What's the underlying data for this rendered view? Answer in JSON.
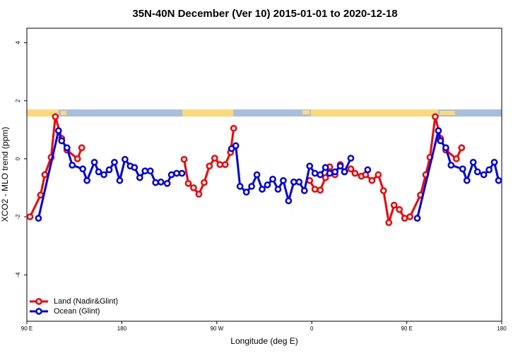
{
  "chart_data": {
    "type": "line",
    "title": "35N-40N December (Ver 10)   2015-01-01 to 2020-12-18",
    "x_label": "Longitude (deg E)",
    "y_label": "XCO2 - MLO trend (ppm)",
    "xlim": [
      90,
      540
    ],
    "ylim": [
      -5.6,
      4.5
    ],
    "xticks": [
      {
        "value": 90,
        "label": "90 E"
      },
      180,
      {
        "value": 270,
        "label": "90 W"
      },
      {
        "value": 360,
        "label": "0"
      },
      {
        "value": 450,
        "label": "90 E"
      },
      {
        "value": 540,
        "label": "180"
      }
    ],
    "yticks": [
      -4,
      -2,
      0,
      2,
      4
    ],
    "legend": "bottom-left",
    "series": [
      {
        "name": "Land (Nadir&Glint)",
        "color": "#ff0000",
        "x": [
          93,
          103,
          107,
          113,
          117,
          123,
          128,
          138,
          142,
          null,
          239,
          243,
          248,
          253,
          258,
          263,
          268,
          273,
          278,
          283,
          286,
          null,
          358,
          363,
          368,
          373,
          377,
          382,
          387,
          391,
          397,
          401,
          407,
          411,
          417,
          423,
          428,
          433,
          438,
          443,
          448,
          453,
          463,
          468,
          472,
          477,
          482,
          487,
          497,
          502
        ],
        "values": [
          -2.0,
          -1.25,
          -0.55,
          0.05,
          1.45,
          0.7,
          0.3,
          0.0,
          0.38,
          null,
          -0.02,
          -0.85,
          -1.0,
          -1.22,
          -0.82,
          -0.25,
          0.02,
          -0.2,
          -0.2,
          0.22,
          1.05,
          null,
          -0.75,
          -1.05,
          -1.08,
          -0.65,
          -0.28,
          -0.55,
          -0.2,
          -0.45,
          -0.35,
          -0.5,
          -0.6,
          -0.55,
          -0.75,
          -0.55,
          -1.1,
          -2.2,
          -1.6,
          -1.75,
          -2.05,
          -2.0,
          -1.25,
          -0.55,
          0.05,
          1.45,
          0.7,
          0.3,
          0.0,
          0.38
        ]
      },
      {
        "name": "Ocean (Glint)",
        "color": "#0000ee",
        "x": [
          101,
          120,
          123,
          128,
          133,
          143,
          147,
          154,
          158,
          163,
          168,
          173,
          178,
          183,
          188,
          192,
          197,
          202,
          207,
          212,
          217,
          223,
          227,
          232,
          237,
          null,
          284,
          288,
          292,
          298,
          303,
          308,
          313,
          318,
          323,
          328,
          333,
          338,
          343,
          348,
          353,
          358,
          363,
          368,
          373,
          377,
          382,
          387,
          391,
          397,
          null,
          413,
          null,
          460,
          480,
          482,
          487,
          492,
          503,
          507,
          513,
          517,
          523,
          528,
          533,
          537
        ],
        "values": [
          -2.05,
          0.97,
          0.62,
          0.38,
          -0.22,
          -0.35,
          -0.75,
          -0.12,
          -0.45,
          -0.55,
          -0.38,
          -0.12,
          -0.75,
          -0.02,
          -0.25,
          -0.3,
          -0.65,
          -0.42,
          -0.42,
          -0.82,
          -0.8,
          -0.85,
          -0.55,
          -0.5,
          -0.5,
          null,
          0.35,
          0.45,
          -0.95,
          -1.15,
          -0.95,
          -0.55,
          -1.05,
          -0.9,
          -0.7,
          -1.05,
          -0.75,
          -1.45,
          -0.8,
          -0.8,
          -1.1,
          -0.25,
          -0.5,
          -0.55,
          -0.3,
          -0.5,
          -0.45,
          -0.25,
          -0.45,
          0.02,
          null,
          -0.38,
          null,
          -2.05,
          0.97,
          0.62,
          0.38,
          -0.22,
          -0.35,
          -0.75,
          -0.12,
          -0.45,
          -0.55,
          -0.38,
          -0.12,
          -0.75
        ]
      }
    ]
  }
}
